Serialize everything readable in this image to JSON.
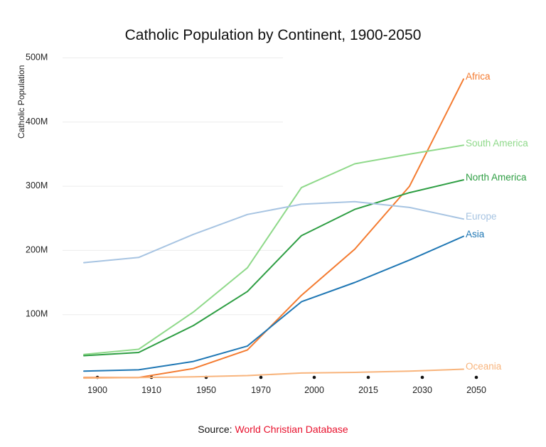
{
  "chart_data": {
    "type": "line",
    "title": "Catholic Population by Continent, 1900-2050",
    "ylabel": "Catholic Population",
    "xlabel": "",
    "categories": [
      "1900",
      "1910",
      "1950",
      "1970",
      "2000",
      "2015",
      "2030",
      "2050"
    ],
    "ylim": [
      0,
      500
    ],
    "yticks": [
      {
        "value": 100,
        "label": "100M"
      },
      {
        "value": 200,
        "label": "200M"
      },
      {
        "value": 300,
        "label": "300M"
      },
      {
        "value": 400,
        "label": "400M"
      },
      {
        "value": 500,
        "label": "500M"
      }
    ],
    "grid": true,
    "series": [
      {
        "name": "Africa",
        "color": "#f47b30",
        "values": [
          2,
          2,
          16,
          45,
          130,
          202,
          300,
          467
        ]
      },
      {
        "name": "South America",
        "color": "#8fd98a",
        "values": [
          38,
          46,
          104,
          173,
          298,
          335,
          350,
          364
        ]
      },
      {
        "name": "North America",
        "color": "#2e9e43",
        "values": [
          36,
          41,
          83,
          136,
          223,
          264,
          290,
          310
        ]
      },
      {
        "name": "Europe",
        "color": "#a7c4e2",
        "values": [
          181,
          189,
          225,
          256,
          272,
          276,
          267,
          249
        ]
      },
      {
        "name": "Asia",
        "color": "#1f77b4",
        "values": [
          12,
          14,
          27,
          51,
          120,
          150,
          185,
          222
        ]
      },
      {
        "name": "Oceania",
        "color": "#f8b47c",
        "values": [
          1,
          2,
          3,
          5,
          9,
          10,
          12,
          15
        ]
      }
    ]
  },
  "source": {
    "prefix": "Source: ",
    "name": "World Christian Database"
  }
}
